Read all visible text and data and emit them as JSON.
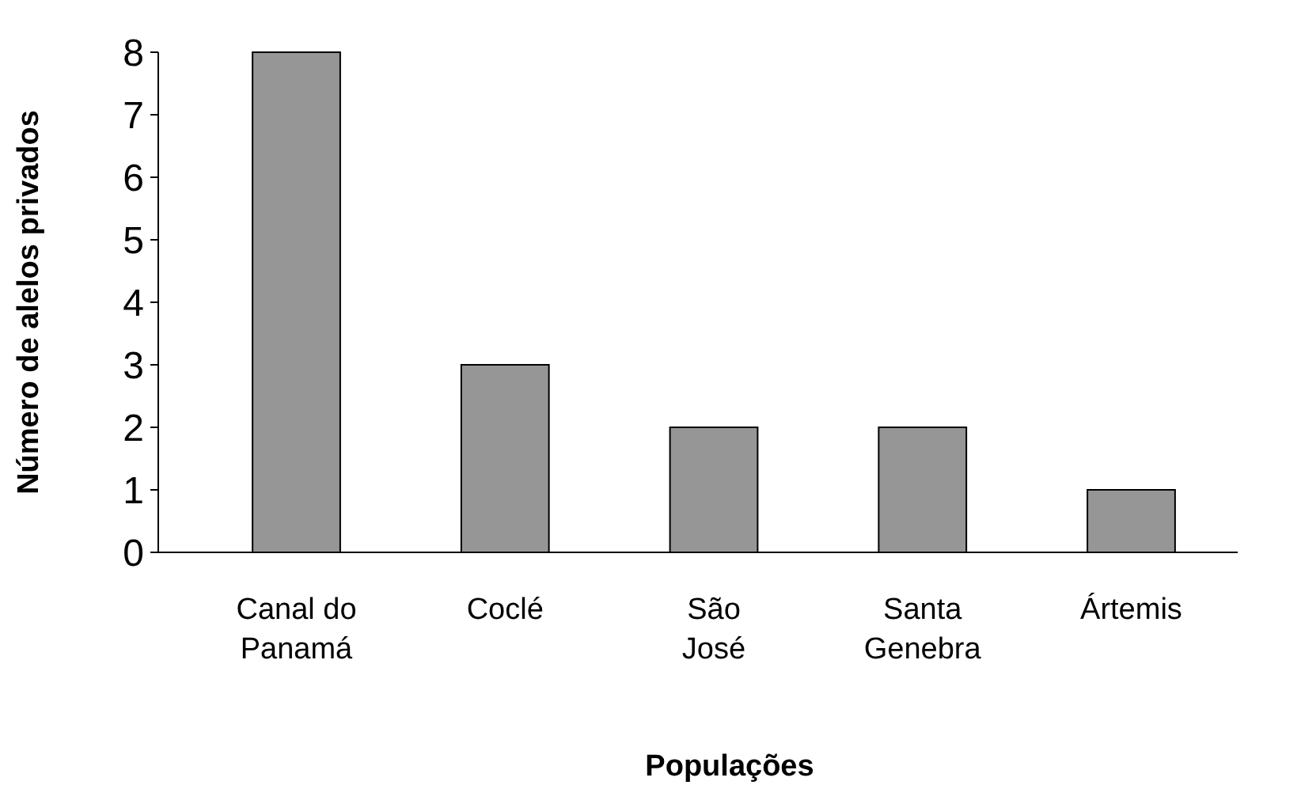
{
  "chart_data": {
    "type": "bar",
    "xlabel": "Populações",
    "ylabel": "Número de alelos privados",
    "categories": [
      "Canal do Panamá",
      "Coclé",
      "São José",
      "Santa Genebra",
      "Ártemis"
    ],
    "values": [
      8,
      3,
      2,
      2,
      1
    ],
    "color": "#969696",
    "ylim": [
      0,
      8
    ],
    "yticks": [
      0,
      1,
      2,
      3,
      4,
      5,
      6,
      7,
      8
    ],
    "grid": false
  }
}
